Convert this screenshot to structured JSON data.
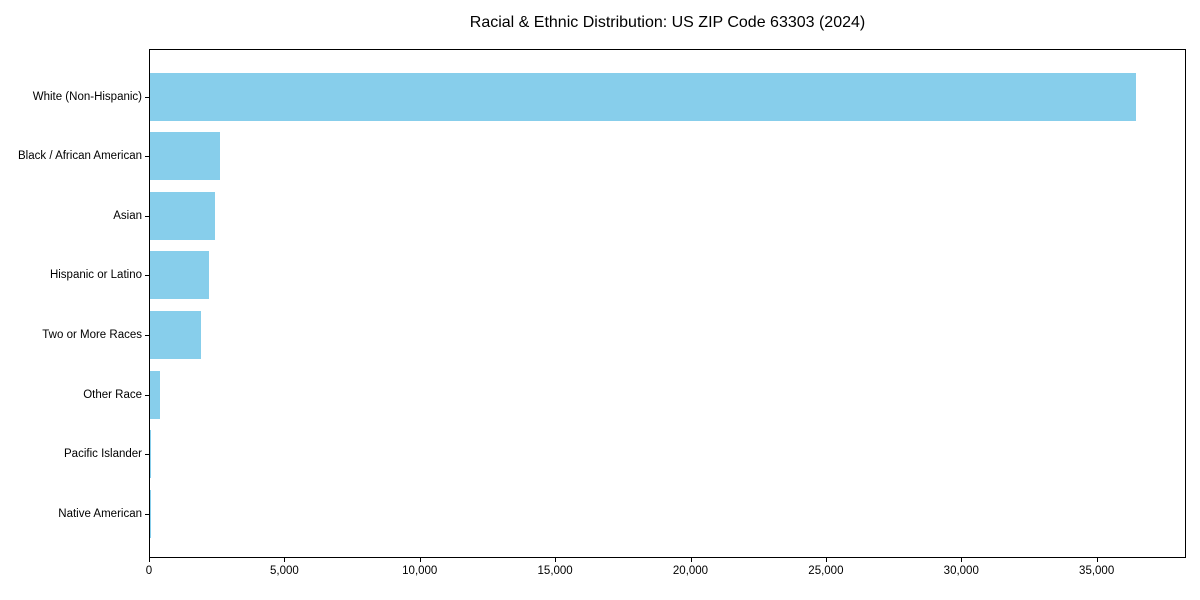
{
  "chart_data": {
    "type": "bar",
    "orientation": "horizontal",
    "title": "Racial & Ethnic Distribution: US ZIP Code 63303 (2024)",
    "xlabel": "",
    "ylabel": "",
    "categories": [
      "White (Non-Hispanic)",
      "Black / African American",
      "Asian",
      "Hispanic or Latino",
      "Two or More Races",
      "Other Race",
      "Pacific Islander",
      "Native American"
    ],
    "values": [
      36500,
      2600,
      2410,
      2170,
      1880,
      370,
      50,
      20
    ],
    "xlim": [
      0,
      38300
    ],
    "x_ticks": [
      0,
      5000,
      10000,
      15000,
      20000,
      25000,
      30000,
      35000
    ],
    "x_tick_labels": [
      "0",
      "5,000",
      "10,000",
      "15,000",
      "20,000",
      "25,000",
      "30,000",
      "35,000"
    ],
    "bar_color": "#87CEEB",
    "grid": false,
    "legend": false
  }
}
